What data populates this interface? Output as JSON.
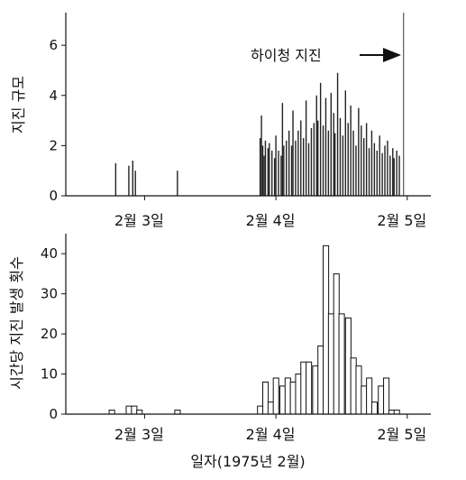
{
  "chart_data": [
    {
      "type": "bar",
      "ylabel": "지진 규모",
      "xlabel": "",
      "ylim": [
        0,
        7.3
      ],
      "yticks": [
        0,
        2,
        4,
        6
      ],
      "xlim": [
        2.4,
        5.18
      ],
      "xtick_labels": [
        {
          "x": 3.0,
          "label": "2월 3일"
        },
        {
          "x": 4.0,
          "label": "2월 4일"
        },
        {
          "x": 5.0,
          "label": "2월 5일"
        }
      ],
      "annotation": {
        "text": "하이청 지진",
        "x": 4.972,
        "magnitude": 7.3
      },
      "events": [
        {
          "t": 2.78,
          "m": 1.3
        },
        {
          "t": 2.88,
          "m": 1.2
        },
        {
          "t": 2.91,
          "m": 1.4
        },
        {
          "t": 2.93,
          "m": 1.0
        },
        {
          "t": 3.25,
          "m": 1.0
        },
        {
          "t": 3.88,
          "m": 2.3
        },
        {
          "t": 3.89,
          "m": 3.2
        },
        {
          "t": 3.9,
          "m": 2.0
        },
        {
          "t": 3.91,
          "m": 1.6
        },
        {
          "t": 3.92,
          "m": 2.2
        },
        {
          "t": 3.94,
          "m": 1.9
        },
        {
          "t": 3.95,
          "m": 2.1
        },
        {
          "t": 3.97,
          "m": 1.8
        },
        {
          "t": 3.99,
          "m": 1.5
        },
        {
          "t": 4.0,
          "m": 2.4
        },
        {
          "t": 4.02,
          "m": 1.8
        },
        {
          "t": 4.04,
          "m": 1.6
        },
        {
          "t": 4.05,
          "m": 3.7
        },
        {
          "t": 4.06,
          "m": 2.0
        },
        {
          "t": 4.08,
          "m": 2.2
        },
        {
          "t": 4.1,
          "m": 2.6
        },
        {
          "t": 4.12,
          "m": 2.0
        },
        {
          "t": 4.13,
          "m": 3.4
        },
        {
          "t": 4.15,
          "m": 2.2
        },
        {
          "t": 4.17,
          "m": 2.6
        },
        {
          "t": 4.19,
          "m": 3.0
        },
        {
          "t": 4.21,
          "m": 2.3
        },
        {
          "t": 4.23,
          "m": 3.8
        },
        {
          "t": 4.25,
          "m": 2.1
        },
        {
          "t": 4.27,
          "m": 2.7
        },
        {
          "t": 4.29,
          "m": 2.9
        },
        {
          "t": 4.31,
          "m": 4.0
        },
        {
          "t": 4.32,
          "m": 3.0
        },
        {
          "t": 4.34,
          "m": 4.5
        },
        {
          "t": 4.36,
          "m": 2.8
        },
        {
          "t": 4.38,
          "m": 3.9
        },
        {
          "t": 4.4,
          "m": 2.6
        },
        {
          "t": 4.42,
          "m": 4.1
        },
        {
          "t": 4.44,
          "m": 3.3
        },
        {
          "t": 4.45,
          "m": 2.5
        },
        {
          "t": 4.47,
          "m": 4.9
        },
        {
          "t": 4.49,
          "m": 3.1
        },
        {
          "t": 4.51,
          "m": 2.4
        },
        {
          "t": 4.53,
          "m": 4.2
        },
        {
          "t": 4.55,
          "m": 2.9
        },
        {
          "t": 4.57,
          "m": 3.6
        },
        {
          "t": 4.59,
          "m": 2.6
        },
        {
          "t": 4.61,
          "m": 2.0
        },
        {
          "t": 4.63,
          "m": 3.5
        },
        {
          "t": 4.65,
          "m": 2.8
        },
        {
          "t": 4.67,
          "m": 2.3
        },
        {
          "t": 4.69,
          "m": 2.9
        },
        {
          "t": 4.71,
          "m": 1.9
        },
        {
          "t": 4.73,
          "m": 2.6
        },
        {
          "t": 4.75,
          "m": 2.1
        },
        {
          "t": 4.77,
          "m": 1.8
        },
        {
          "t": 4.79,
          "m": 2.4
        },
        {
          "t": 4.81,
          "m": 1.7
        },
        {
          "t": 4.83,
          "m": 2.0
        },
        {
          "t": 4.85,
          "m": 2.2
        },
        {
          "t": 4.87,
          "m": 1.6
        },
        {
          "t": 4.89,
          "m": 1.9
        },
        {
          "t": 4.9,
          "m": 1.5
        },
        {
          "t": 4.92,
          "m": 1.8
        },
        {
          "t": 4.94,
          "m": 1.6
        },
        {
          "t": 4.972,
          "m": 7.3
        }
      ]
    },
    {
      "type": "bar",
      "ylabel": "시간당 지진 발생 횟수",
      "xlabel": "일자(1975년 2월)",
      "ylim": [
        0,
        45
      ],
      "yticks": [
        0,
        10,
        20,
        30,
        40
      ],
      "xlim": [
        2.4,
        5.18
      ],
      "xtick_labels": [
        {
          "x": 3.0,
          "label": "2월 3일"
        },
        {
          "x": 4.0,
          "label": "2월 4일"
        },
        {
          "x": 5.0,
          "label": "2월 5일"
        }
      ],
      "bin_width_days": 0.0417,
      "bins": [
        {
          "start": 2.73,
          "count": 1
        },
        {
          "start": 2.86,
          "count": 2
        },
        {
          "start": 2.9,
          "count": 2
        },
        {
          "start": 2.94,
          "count": 1
        },
        {
          "start": 3.23,
          "count": 1
        },
        {
          "start": 3.86,
          "count": 2
        },
        {
          "start": 3.9,
          "count": 8
        },
        {
          "start": 3.94,
          "count": 3
        },
        {
          "start": 3.98,
          "count": 9
        },
        {
          "start": 4.03,
          "count": 7
        },
        {
          "start": 4.07,
          "count": 9
        },
        {
          "start": 4.11,
          "count": 8
        },
        {
          "start": 4.15,
          "count": 10
        },
        {
          "start": 4.19,
          "count": 13
        },
        {
          "start": 4.23,
          "count": 13
        },
        {
          "start": 4.28,
          "count": 12
        },
        {
          "start": 4.32,
          "count": 17
        },
        {
          "start": 4.36,
          "count": 42
        },
        {
          "start": 4.4,
          "count": 25
        },
        {
          "start": 4.44,
          "count": 35
        },
        {
          "start": 4.48,
          "count": 25
        },
        {
          "start": 4.53,
          "count": 24
        },
        {
          "start": 4.57,
          "count": 14
        },
        {
          "start": 4.61,
          "count": 12
        },
        {
          "start": 4.65,
          "count": 7
        },
        {
          "start": 4.69,
          "count": 9
        },
        {
          "start": 4.73,
          "count": 3
        },
        {
          "start": 4.78,
          "count": 7
        },
        {
          "start": 4.82,
          "count": 9
        },
        {
          "start": 4.86,
          "count": 1
        },
        {
          "start": 4.9,
          "count": 1
        }
      ]
    }
  ]
}
